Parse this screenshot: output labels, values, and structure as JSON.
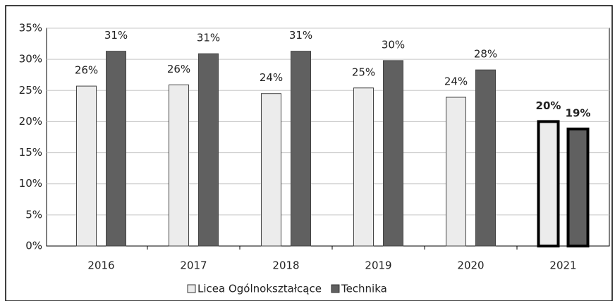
{
  "chart_data": {
    "type": "bar",
    "categories": [
      "2016",
      "2017",
      "2018",
      "2019",
      "2020",
      "2021"
    ],
    "series": [
      {
        "name": "Licea Ogólnokształcące",
        "color": "#ececec",
        "values": [
          25.7,
          25.9,
          24.5,
          25.4,
          23.9,
          20.0
        ],
        "value_labels": [
          "26%",
          "26%",
          "24%",
          "25%",
          "24%",
          "20%"
        ]
      },
      {
        "name": "Technika",
        "color": "#606060",
        "values": [
          31.3,
          30.9,
          31.3,
          29.8,
          28.3,
          18.8
        ],
        "value_labels": [
          "31%",
          "31%",
          "31%",
          "30%",
          "28%",
          "19%"
        ]
      }
    ],
    "ylim": [
      0,
      35
    ],
    "yticks": [
      {
        "value": 0,
        "label": "0%"
      },
      {
        "value": 5,
        "label": "5%"
      },
      {
        "value": 10,
        "label": "10%"
      },
      {
        "value": 15,
        "label": "15%"
      },
      {
        "value": 20,
        "label": "20%"
      },
      {
        "value": 25,
        "label": "25%"
      },
      {
        "value": 30,
        "label": "30%"
      },
      {
        "value": 35,
        "label": "35%"
      }
    ],
    "grid": true,
    "legend": "bottom",
    "highlight": [
      5
    ]
  }
}
